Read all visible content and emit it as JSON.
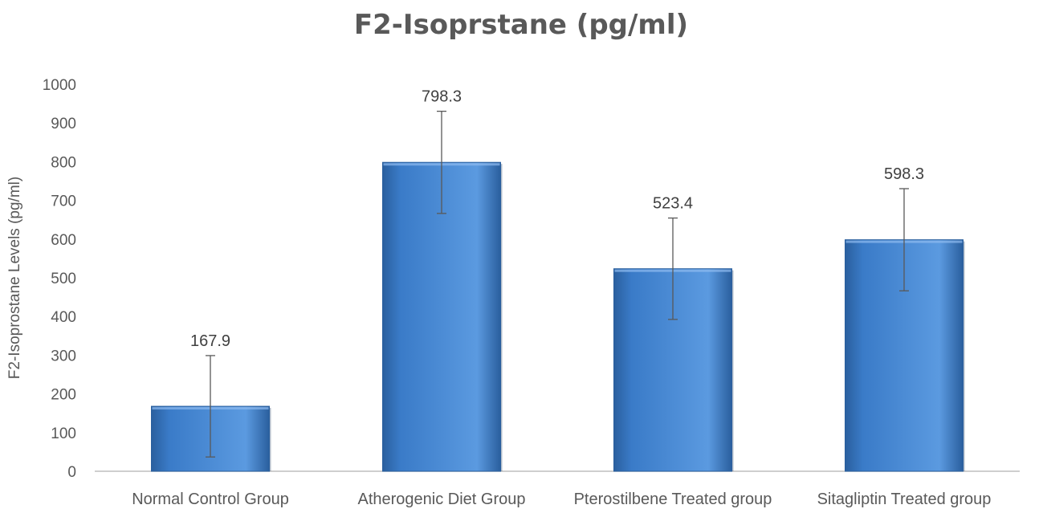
{
  "chart_data": {
    "type": "bar",
    "title": "F2-Isoprstane (pg/ml)",
    "xlabel": "",
    "ylabel": "F2-Isoprostane Levels (pg/ml)",
    "categories": [
      "Normal Control Group",
      "Atherogenic Diet Group",
      "Pterostilbene Treated group",
      "Sitagliptin Treated group"
    ],
    "values": [
      167.9,
      798.3,
      523.4,
      598.3
    ],
    "data_labels": [
      "167.9",
      "798.3",
      "523.4",
      "598.3"
    ],
    "error_bars": [
      131,
      132,
      131,
      132
    ],
    "ylim": [
      0,
      1000
    ],
    "yticks": [
      0,
      100,
      200,
      300,
      400,
      500,
      600,
      700,
      800,
      900,
      1000
    ],
    "ytick_labels": [
      "0",
      "100",
      "200",
      "300",
      "400",
      "500",
      "600",
      "700",
      "800",
      "900",
      "1000"
    ],
    "grid": false,
    "legend": "none",
    "bar_color": "#3a7bc8",
    "bar_color_light": "#5b9ae0",
    "bar_color_dark": "#2a5f9e",
    "error_bar_color": "#595959",
    "axis_color": "#bfbfbf",
    "text_color": "#595959"
  }
}
